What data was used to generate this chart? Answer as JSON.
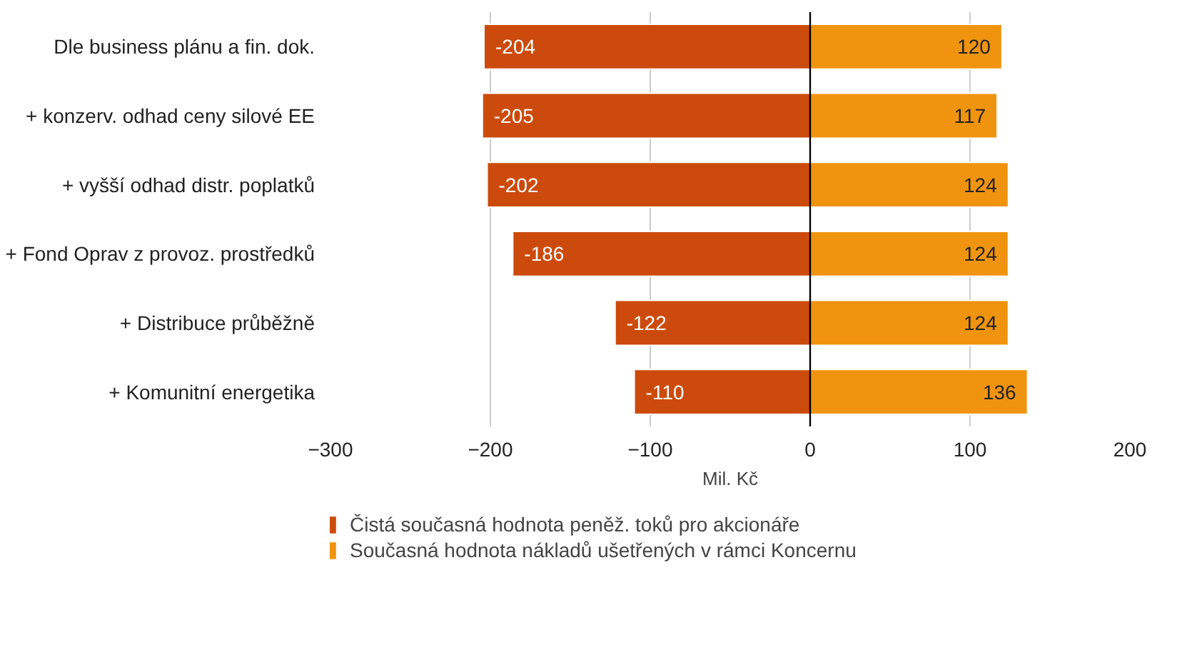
{
  "chart_data": {
    "type": "bar",
    "orientation": "horizontal",
    "stacked": true,
    "xlabel": "Mil. Kč",
    "categories": [
      "Dle business plánu a fin. dok.",
      "+ konzerv. odhad ceny silové EE",
      "+ vyšší odhad distr. poplatků",
      "+ Fond Oprav z provoz. prostředků",
      "+ Distribuce průběžně",
      "+ Komunitní energetika"
    ],
    "series": [
      {
        "name": "Čistá současná hodnota peněž. toků pro akcionáře",
        "color": "#cc4b0c",
        "values": [
          -204,
          -205,
          -202,
          -186,
          -122,
          -110
        ]
      },
      {
        "name": "Současná hodnota nákladů ušetřených v rámci Koncernu",
        "color": "#f0940f",
        "values": [
          120,
          117,
          124,
          124,
          124,
          136
        ]
      }
    ],
    "xlim": [
      -300,
      200
    ],
    "xticks": [
      -300,
      -200,
      -100,
      0,
      100,
      200
    ],
    "ref_lines": [
      {
        "axis": "x",
        "value": 0,
        "color": "#000000"
      }
    ],
    "grid": "x",
    "legend": "bottom",
    "data_labels": true
  }
}
